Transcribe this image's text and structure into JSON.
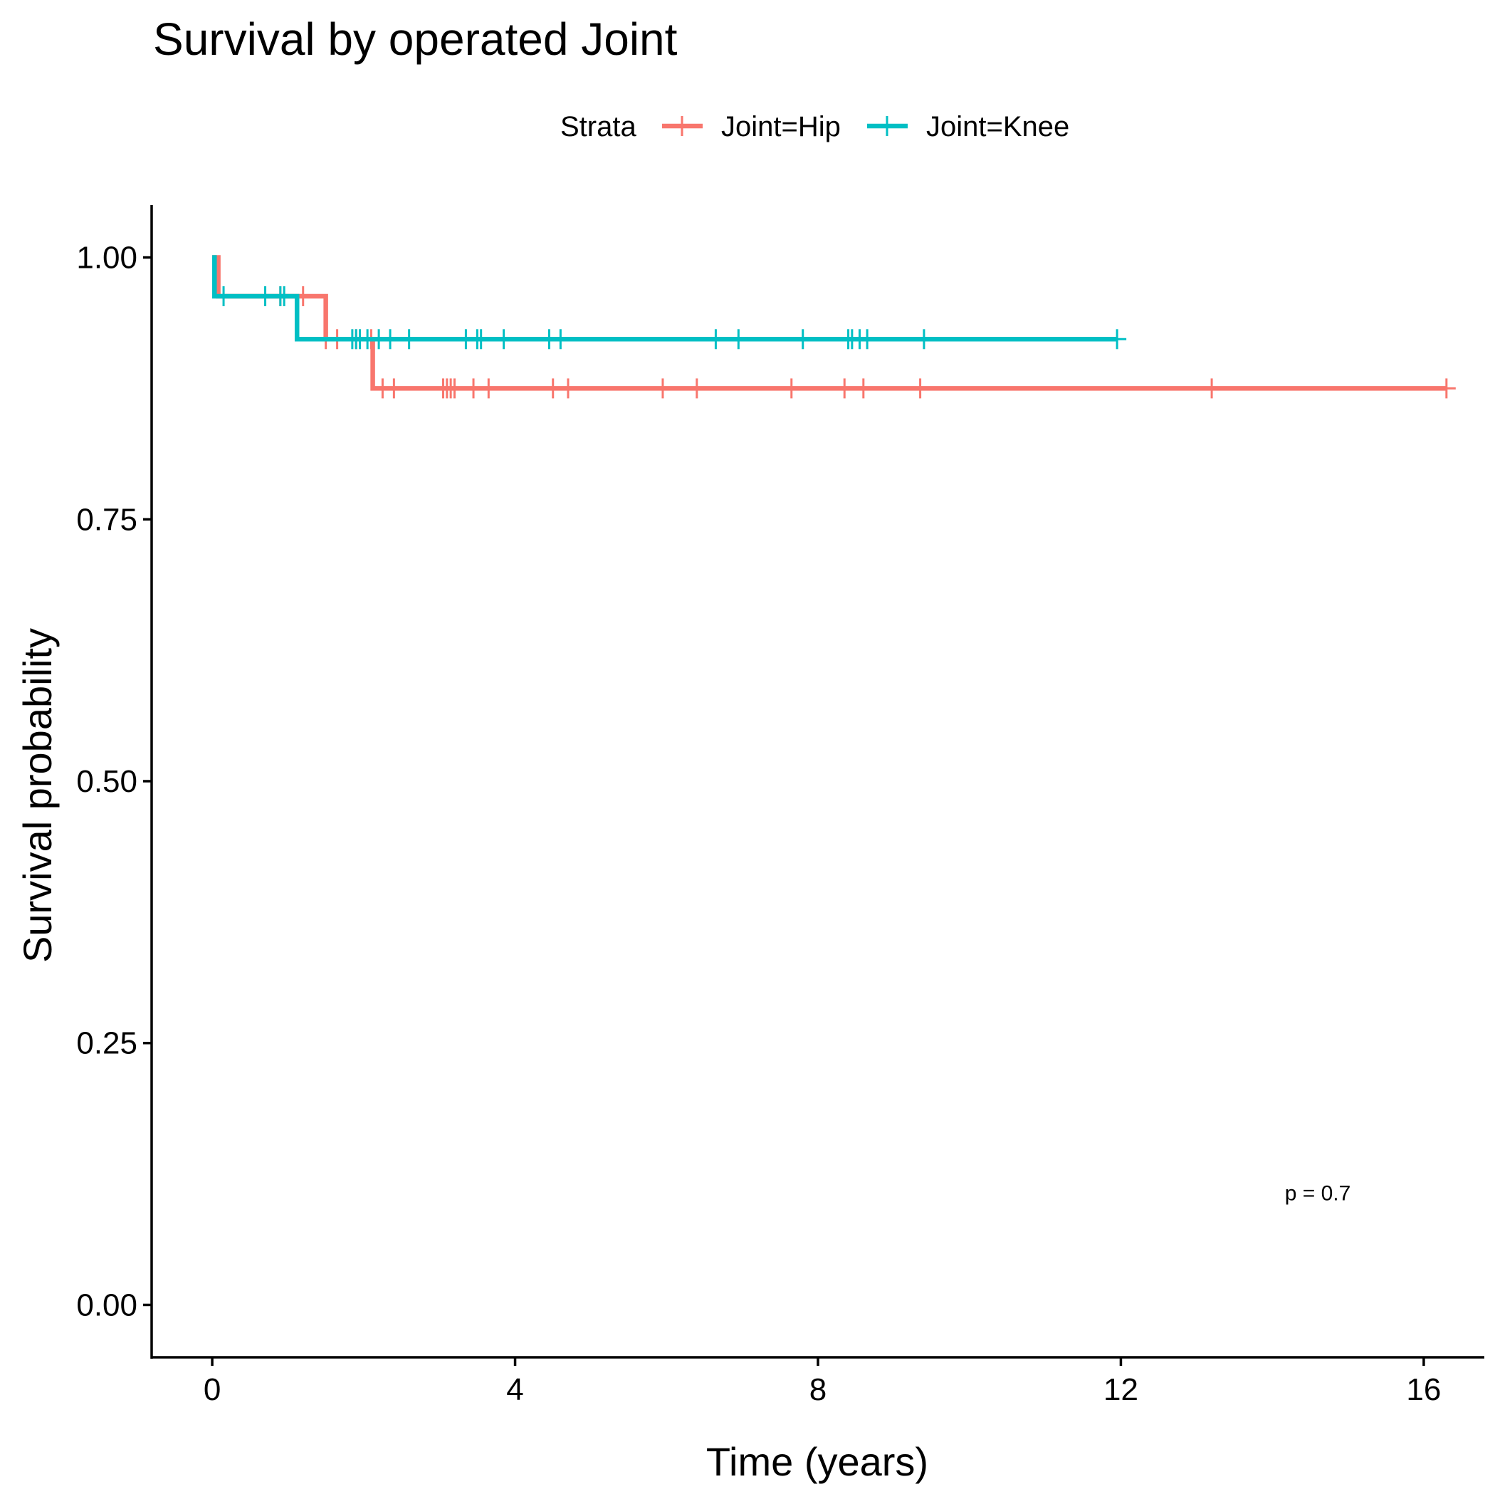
{
  "chart_data": {
    "type": "line",
    "step": true,
    "title": "Survival by operated Joint",
    "xlabel": "Time (years)",
    "ylabel": "Survival probability",
    "xlim": [
      -0.8,
      16.8
    ],
    "ylim": [
      -0.05,
      1.05
    ],
    "x_ticks": [
      0,
      4,
      8,
      12,
      16
    ],
    "x_tick_labels": [
      "0",
      "4",
      "8",
      "12",
      "16"
    ],
    "y_ticks": [
      0,
      0.25,
      0.5,
      0.75,
      1
    ],
    "y_tick_labels": [
      "0.00",
      "0.25",
      "0.50",
      "0.75",
      "1.00"
    ],
    "grid": false,
    "legend": {
      "title": "Strata",
      "position": "top"
    },
    "annotation": "p = 0.7",
    "annotation_at": {
      "x": 14.6,
      "y": 0.1
    },
    "series": [
      {
        "name": "Joint=Hip",
        "color": "#F8766D",
        "steps": [
          [
            0,
            1.0
          ],
          [
            0.08,
            0.963
          ],
          [
            1.5,
            0.922
          ],
          [
            2.12,
            0.875
          ],
          [
            16.3,
            0.875
          ]
        ],
        "censor_x": [
          0.9,
          1.2,
          1.5,
          1.65,
          1.9,
          2.1,
          2.25,
          2.4,
          3.05,
          3.1,
          3.15,
          3.2,
          3.45,
          3.65,
          4.5,
          4.7,
          5.95,
          6.4,
          7.65,
          8.35,
          8.6,
          9.35,
          13.2,
          16.3
        ]
      },
      {
        "name": "Joint=Knee",
        "color": "#00BFC4",
        "steps": [
          [
            0,
            1.0
          ],
          [
            0.03,
            0.963
          ],
          [
            1.12,
            0.922
          ],
          [
            11.95,
            0.922
          ]
        ],
        "censor_x": [
          0.15,
          0.7,
          0.9,
          0.95,
          1.85,
          1.9,
          1.95,
          2.05,
          2.2,
          2.35,
          2.6,
          3.35,
          3.5,
          3.55,
          3.85,
          4.45,
          4.6,
          6.65,
          6.95,
          7.8,
          8.4,
          8.45,
          8.55,
          8.65,
          9.4,
          11.95
        ]
      }
    ]
  }
}
